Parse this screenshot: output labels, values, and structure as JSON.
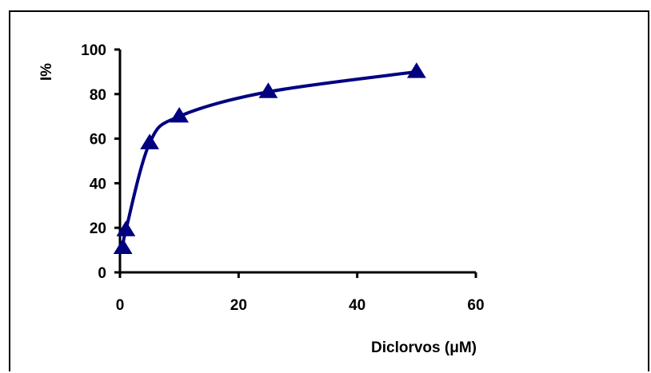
{
  "chart_data": {
    "type": "line",
    "title": "",
    "xlabel": "Diclorvos (μM)",
    "ylabel": "I%",
    "xlim": [
      0,
      60
    ],
    "ylim": [
      0,
      100
    ],
    "xticks": [
      0,
      20,
      40,
      60
    ],
    "yticks": [
      0,
      20,
      40,
      60,
      80,
      100
    ],
    "grid": false,
    "legend": "none",
    "series": [
      {
        "x": [
          0.5,
          1,
          5,
          10,
          25,
          50
        ],
        "y": [
          11,
          19,
          58,
          70,
          81,
          90
        ],
        "color": "#000080",
        "marker": "triangle"
      }
    ]
  }
}
